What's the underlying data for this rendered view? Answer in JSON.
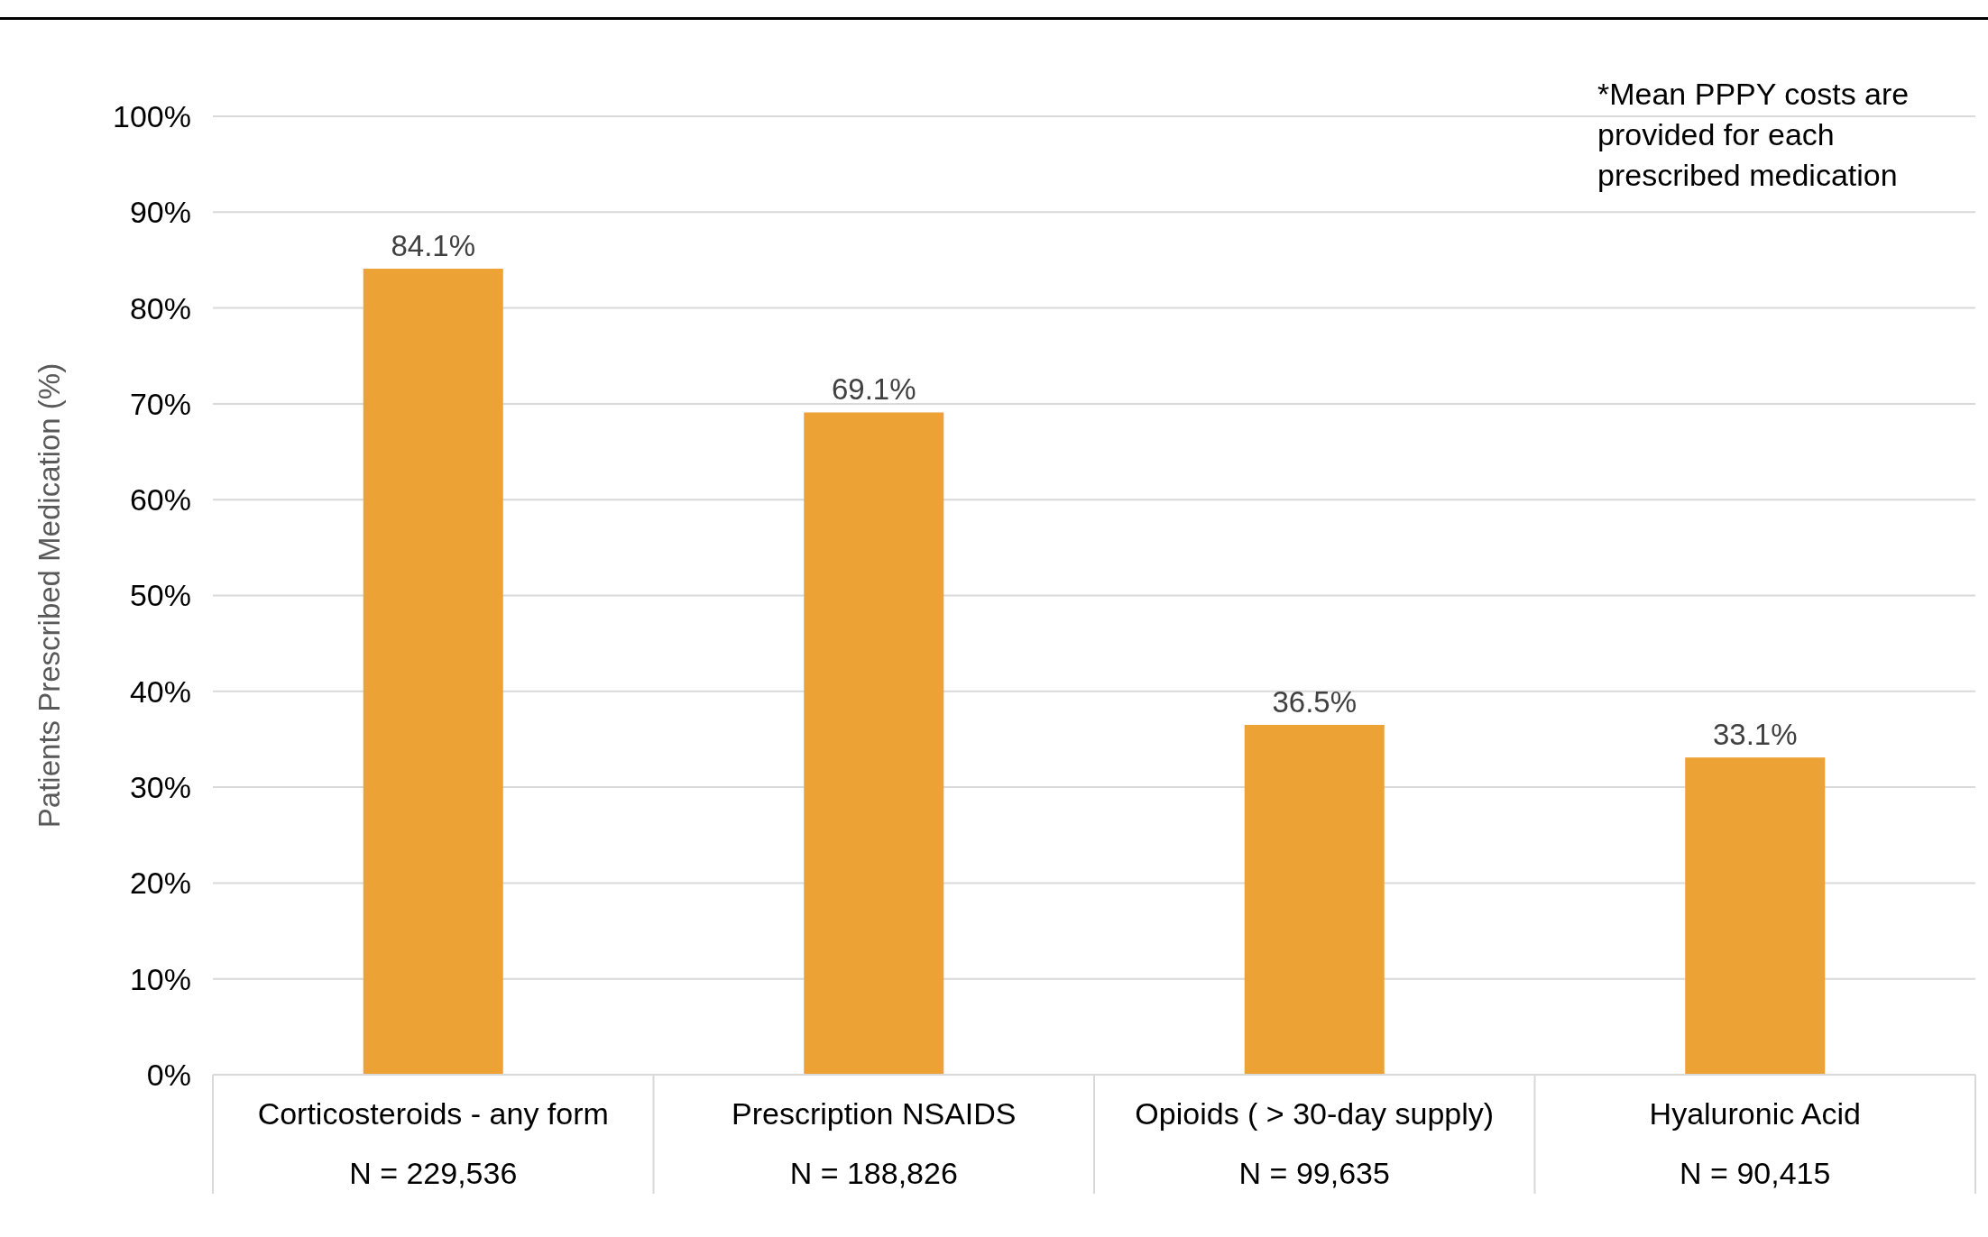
{
  "chart_data": {
    "type": "bar",
    "ylabel": "Patients Prescribed Medication (%)",
    "categories": [
      "Corticosteroids - any form\nN = 229,536",
      "Prescription NSAIDS\nN = 188,826",
      "Opioids ( > 30-day  supply)\nN = 99,635",
      "Hyaluronic Acid\nN = 90,415"
    ],
    "values": [
      84.1,
      69.1,
      36.5,
      33.1
    ],
    "color": "#eda236",
    "value_labels": [
      "84.1%",
      "69.1%",
      "36.5%",
      "33.1%"
    ],
    "ylim": [
      0,
      100
    ],
    "yticks": [
      {
        "value": 0,
        "label": "0%"
      },
      {
        "value": 10,
        "label": "10%"
      },
      {
        "value": 20,
        "label": "20%"
      },
      {
        "value": 30,
        "label": "30%"
      },
      {
        "value": 40,
        "label": "40%"
      },
      {
        "value": 50,
        "label": "50%"
      },
      {
        "value": 60,
        "label": "60%"
      },
      {
        "value": 70,
        "label": "70%"
      },
      {
        "value": 80,
        "label": "80%"
      },
      {
        "value": 90,
        "label": "90%"
      },
      {
        "value": 100,
        "label": "100%"
      }
    ],
    "grid": "y",
    "annotations": [
      "*Mean PPPY costs are provided for each prescribed medication"
    ]
  }
}
